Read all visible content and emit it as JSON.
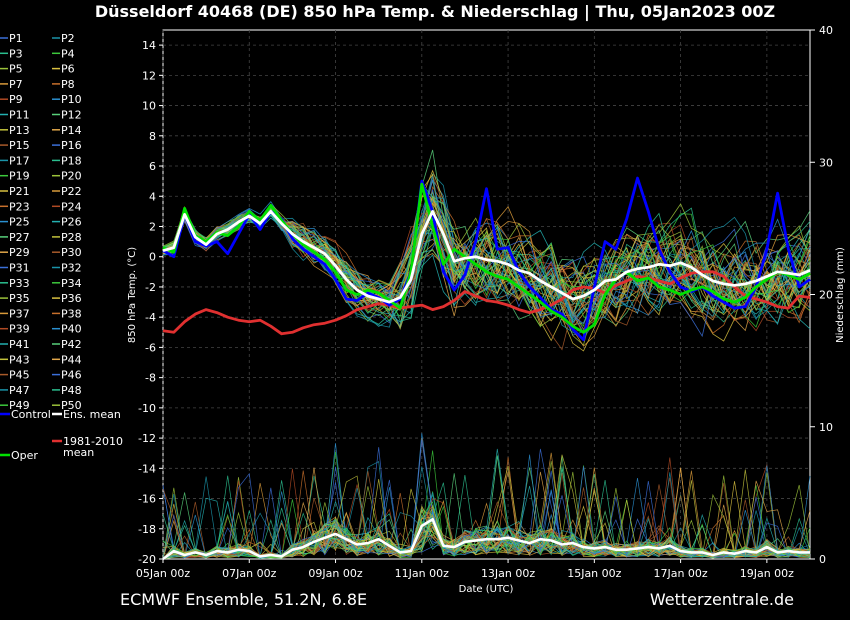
{
  "title": "Düsseldorf 40468 (DE)  850 hPa Temp. & Niederschlag | Thu, 05Jan2023 00Z",
  "footer_left": "ECMWF Ensemble, 51.2N, 6.8E",
  "footer_right": "Wetterzentrale.de",
  "chart_data": {
    "type": "line",
    "title": "Düsseldorf 40468 (DE)  850 hPa Temp. & Niederschlag | Thu, 05Jan2023 00Z",
    "xlabel": "Date (UTC)",
    "ylabel": "850 hPa Temp. (°C)",
    "y2label": "Niederschlag (mm)",
    "xlim": [
      0,
      15
    ],
    "ylim": [
      -20,
      15
    ],
    "y2lim": [
      0,
      40
    ],
    "grid": true,
    "xticks": [
      {
        "x": 0,
        "label": "05Jan 00z"
      },
      {
        "x": 2,
        "label": "07Jan 00z"
      },
      {
        "x": 4,
        "label": "09Jan 00z"
      },
      {
        "x": 6,
        "label": "11Jan 00z"
      },
      {
        "x": 8,
        "label": "13Jan 00z"
      },
      {
        "x": 10,
        "label": "15Jan 00z"
      },
      {
        "x": 12,
        "label": "17Jan 00z"
      },
      {
        "x": 14,
        "label": "19Jan 00z"
      }
    ],
    "yticks": [
      14,
      12,
      10,
      8,
      6,
      4,
      2,
      0,
      -2,
      -4,
      -6,
      -8,
      -10,
      -12,
      -14,
      -16,
      -18,
      -20
    ],
    "y2ticks": [
      40,
      30,
      20,
      10,
      0
    ],
    "legend_members": [
      "P1",
      "P2",
      "P3",
      "P4",
      "P5",
      "P6",
      "P7",
      "P8",
      "P9",
      "P10",
      "P11",
      "P12",
      "P13",
      "P14",
      "P15",
      "P16",
      "P17",
      "P18",
      "P19",
      "P20",
      "P21",
      "P22",
      "P23",
      "P24",
      "P25",
      "P26",
      "P27",
      "P28",
      "P29",
      "P30",
      "P31",
      "P32",
      "P33",
      "P34",
      "P35",
      "P36",
      "P37",
      "P38",
      "P39",
      "P40",
      "P41",
      "P42",
      "P43",
      "P44",
      "P45",
      "P46",
      "P47",
      "P48",
      "P49",
      "P50"
    ],
    "legend_special": [
      {
        "label": "Control",
        "color": "#0000ff"
      },
      {
        "label": "Ens. mean",
        "color": "#ffffff"
      },
      {
        "label": "1981-2010 mean",
        "color": "#e03030"
      },
      {
        "label": "Oper",
        "color": "#00e000"
      }
    ],
    "member_palette": [
      "#3b6fd8",
      "#1a93a8",
      "#2bbf8f",
      "#3cc93c",
      "#9bc23a",
      "#d8c040",
      "#d89a3a",
      "#c8702c",
      "#b04a24",
      "#2a8fd0",
      "#23b0b0",
      "#58d07a",
      "#c2c23c",
      "#e0a64a",
      "#a85a2a"
    ],
    "series": [
      {
        "name": "Ens. mean",
        "color": "#ffffff",
        "x": [
          0,
          0.25,
          0.5,
          0.75,
          1,
          1.25,
          1.5,
          1.75,
          2,
          2.25,
          2.5,
          2.75,
          3,
          3.25,
          3.5,
          3.75,
          4,
          4.25,
          4.5,
          4.75,
          5,
          5.25,
          5.5,
          5.75,
          6,
          6.25,
          6.5,
          6.75,
          7,
          7.25,
          7.5,
          7.75,
          8,
          8.25,
          8.5,
          8.75,
          9,
          9.25,
          9.5,
          9.75,
          10,
          10.25,
          10.5,
          10.75,
          11,
          11.25,
          11.5,
          11.75,
          12,
          12.25,
          12.5,
          12.75,
          13,
          13.25,
          13.5,
          13.75,
          14,
          14.25,
          14.5,
          14.75,
          15
        ],
        "y": [
          0.4,
          0.6,
          2.8,
          1.3,
          0.8,
          1.5,
          1.8,
          2.3,
          2.7,
          2.2,
          3.0,
          2.2,
          1.5,
          1.0,
          0.6,
          0.2,
          -0.6,
          -1.5,
          -2.2,
          -2.6,
          -2.8,
          -3.0,
          -2.7,
          -1.5,
          1.5,
          3.0,
          1.5,
          -0.3,
          -0.1,
          0,
          -0.2,
          -0.3,
          -0.5,
          -0.9,
          -1.1,
          -1.6,
          -2.0,
          -2.4,
          -2.8,
          -2.6,
          -2.2,
          -1.6,
          -1.5,
          -1.0,
          -0.8,
          -0.7,
          -0.5,
          -0.6,
          -0.4,
          -0.7,
          -1.2,
          -1.6,
          -1.8,
          -1.9,
          -1.8,
          -1.6,
          -1.3,
          -1.0,
          -1.1,
          -1.2,
          -0.9
        ]
      },
      {
        "name": "1981-2010 mean",
        "color": "#e03030",
        "x": [
          0,
          0.25,
          0.5,
          0.75,
          1,
          1.25,
          1.5,
          1.75,
          2,
          2.25,
          2.5,
          2.75,
          3,
          3.25,
          3.5,
          3.75,
          4,
          4.25,
          4.5,
          4.75,
          5,
          5.25,
          5.5,
          5.75,
          6,
          6.25,
          6.5,
          6.75,
          7,
          7.25,
          7.5,
          7.75,
          8,
          8.25,
          8.5,
          8.75,
          9,
          9.25,
          9.5,
          9.75,
          10,
          10.25,
          10.5,
          10.75,
          11,
          11.25,
          11.5,
          11.75,
          12,
          12.25,
          12.5,
          12.75,
          13,
          13.25,
          13.5,
          13.75,
          14,
          14.25,
          14.5,
          14.75,
          15
        ],
        "y": [
          -4.9,
          -5.0,
          -4.3,
          -3.8,
          -3.5,
          -3.7,
          -4.0,
          -4.2,
          -4.3,
          -4.2,
          -4.6,
          -5.1,
          -5.0,
          -4.7,
          -4.5,
          -4.4,
          -4.2,
          -3.9,
          -3.5,
          -3.3,
          -3.1,
          -3.2,
          -3.4,
          -3.3,
          -3.2,
          -3.5,
          -3.3,
          -2.9,
          -2.3,
          -2.6,
          -2.9,
          -3.0,
          -3.2,
          -3.5,
          -3.7,
          -3.5,
          -3.2,
          -2.8,
          -2.2,
          -2.0,
          -2.1,
          -2.4,
          -1.9,
          -1.6,
          -1.3,
          -1.4,
          -1.6,
          -1.8,
          -1.4,
          -1.1,
          -1.0,
          -1.0,
          -1.3,
          -2.0,
          -2.6,
          -2.8,
          -3.0,
          -3.3,
          -3.4,
          -2.6,
          -2.7
        ]
      },
      {
        "name": "Control",
        "color": "#0000ff",
        "x": [
          0,
          0.25,
          0.5,
          0.75,
          1,
          1.25,
          1.5,
          1.75,
          2,
          2.25,
          2.5,
          2.75,
          3,
          3.25,
          3.5,
          3.75,
          4,
          4.25,
          4.5,
          4.75,
          5,
          5.25,
          5.5,
          5.75,
          6,
          6.25,
          6.5,
          6.75,
          7,
          7.25,
          7.5,
          7.75,
          8,
          8.25,
          8.5,
          8.75,
          9,
          9.25,
          9.5,
          9.75,
          10,
          10.25,
          10.5,
          10.75,
          11,
          11.25,
          11.5,
          11.75,
          12,
          12.25,
          12.5,
          12.75,
          13,
          13.25,
          13.5,
          13.75,
          14,
          14.25,
          14.5,
          14.75,
          15
        ],
        "y": [
          0.4,
          0.0,
          2.8,
          1.0,
          0.7,
          1.0,
          0.2,
          1.5,
          2.8,
          1.8,
          3.0,
          2.5,
          1.2,
          0.5,
          0.0,
          -0.5,
          -1.5,
          -2.8,
          -2.9,
          -2.4,
          -2.7,
          -3.2,
          -2.8,
          -1.0,
          5.0,
          3.0,
          -1.0,
          -2.2,
          -1.2,
          1.0,
          4.5,
          0.5,
          0.6,
          -1.0,
          -2.0,
          -2.7,
          -3.5,
          -3.8,
          -4.8,
          -5.5,
          -2.0,
          1.0,
          0.5,
          2.5,
          5.2,
          3.0,
          0.5,
          -1.0,
          -2.0,
          -2.3,
          -2.0,
          -2.6,
          -3.0,
          -3.4,
          -3.3,
          -2.0,
          0.5,
          4.2,
          0.5,
          -2.0,
          -1.5
        ]
      },
      {
        "name": "Oper",
        "color": "#00e000",
        "x": [
          0,
          0.25,
          0.5,
          0.75,
          1,
          1.25,
          1.5,
          1.75,
          2,
          2.25,
          2.5,
          2.75,
          3,
          3.25,
          3.5,
          3.75,
          4,
          4.25,
          4.5,
          4.75,
          5,
          5.25,
          5.5,
          5.75,
          6,
          6.25,
          6.5,
          6.75,
          7,
          7.25,
          7.5,
          7.75,
          8,
          8.25,
          8.5,
          8.75,
          9,
          9.25,
          9.5,
          9.75,
          10,
          10.25,
          10.5,
          10.75,
          11,
          11.25,
          11.5,
          11.75,
          12,
          12.25,
          12.5,
          12.75,
          13,
          13.25,
          13.5,
          13.75,
          14,
          14.25,
          14.5,
          14.75,
          15
        ],
        "y": [
          0.6,
          0.3,
          3.2,
          1.4,
          1.0,
          1.6,
          1.4,
          2.0,
          3.0,
          2.4,
          3.4,
          2.4,
          1.5,
          0.8,
          0.3,
          -0.2,
          -1.0,
          -2.2,
          -2.5,
          -2.2,
          -2.4,
          -2.9,
          -3.4,
          -1.0,
          4.8,
          2.0,
          -0.5,
          0.5,
          0.0,
          -0.5,
          -1.0,
          -1.3,
          -1.5,
          -2.0,
          -2.5,
          -3.0,
          -3.6,
          -4.0,
          -4.6,
          -5.0,
          -4.5,
          -2.5,
          -1.5,
          -1.0,
          -1.6,
          -1.4,
          -2.0,
          -2.2,
          -2.5,
          -2.2,
          -2.0,
          -2.3,
          -2.8,
          -3.0,
          -2.7,
          -2.0,
          -1.5,
          -1.0,
          -1.2,
          -1.5,
          -1.1
        ]
      },
      {
        "name": "Ens. mean precipitation",
        "color": "#ffffff",
        "axis": "y2",
        "x": [
          0,
          0.25,
          0.5,
          0.75,
          1,
          1.25,
          1.5,
          1.75,
          2,
          2.25,
          2.5,
          2.75,
          3,
          3.25,
          3.5,
          3.75,
          4,
          4.25,
          4.5,
          4.75,
          5,
          5.25,
          5.5,
          5.75,
          6,
          6.25,
          6.5,
          6.75,
          7,
          7.25,
          7.5,
          7.75,
          8,
          8.25,
          8.5,
          8.75,
          9,
          9.25,
          9.5,
          9.75,
          10,
          10.25,
          10.5,
          10.75,
          11,
          11.25,
          11.5,
          11.75,
          12,
          12.25,
          12.5,
          12.75,
          13,
          13.25,
          13.5,
          13.75,
          14,
          14.25,
          14.5,
          14.75,
          15
        ],
        "y": [
          0.0,
          0.6,
          0.3,
          0.5,
          0.3,
          0.6,
          0.5,
          0.7,
          0.6,
          0.2,
          0.3,
          0.2,
          0.7,
          0.9,
          1.3,
          1.6,
          1.9,
          1.5,
          1.1,
          1.2,
          1.5,
          1.0,
          0.5,
          0.6,
          2.5,
          3.0,
          1.0,
          0.9,
          1.3,
          1.4,
          1.5,
          1.5,
          1.6,
          1.4,
          1.2,
          1.5,
          1.4,
          1.1,
          1.2,
          0.9,
          0.8,
          0.9,
          0.7,
          0.7,
          0.8,
          0.9,
          0.8,
          1.0,
          0.6,
          0.5,
          0.5,
          0.3,
          0.5,
          0.4,
          0.6,
          0.5,
          0.9,
          0.5,
          0.6,
          0.5,
          0.5
        ]
      }
    ]
  }
}
